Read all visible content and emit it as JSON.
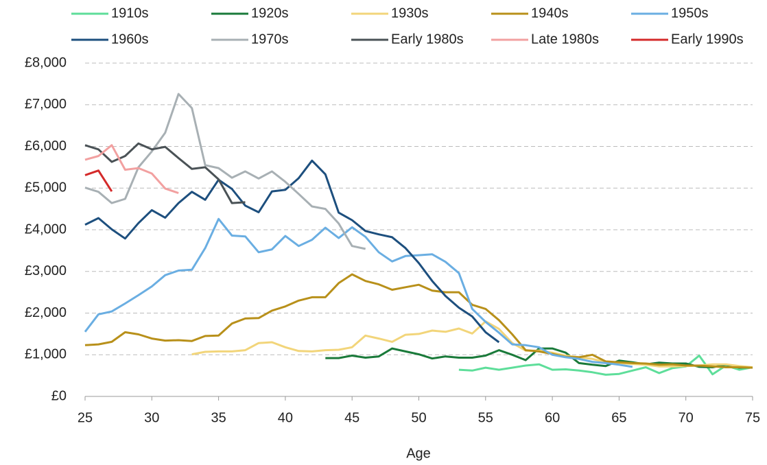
{
  "chart_data": {
    "type": "line",
    "x_label": "Age",
    "x": [
      25,
      26,
      27,
      28,
      29,
      30,
      31,
      32,
      33,
      34,
      35,
      36,
      37,
      38,
      39,
      40,
      41,
      42,
      43,
      44,
      45,
      46,
      47,
      48,
      49,
      50,
      51,
      52,
      53,
      54,
      55,
      56,
      57,
      58,
      59,
      60,
      61,
      62,
      63,
      64,
      65,
      66,
      67,
      68,
      69,
      70,
      71,
      72,
      73,
      74,
      75
    ],
    "xlim": [
      25,
      75
    ],
    "xticks": [
      25,
      30,
      35,
      40,
      45,
      50,
      55,
      60,
      65,
      70,
      75
    ],
    "ylim": [
      0,
      8000
    ],
    "yticks": [
      {
        "value": 0,
        "label": "£0"
      },
      {
        "value": 1000,
        "label": "£1,000"
      },
      {
        "value": 2000,
        "label": "£2,000"
      },
      {
        "value": 3000,
        "label": "£3,000"
      },
      {
        "value": 4000,
        "label": "£4,000"
      },
      {
        "value": 5000,
        "label": "£5,000"
      },
      {
        "value": 6000,
        "label": "£6,000"
      },
      {
        "value": 7000,
        "label": "£7,000"
      },
      {
        "value": 8000,
        "label": "£8,000"
      }
    ],
    "grid": true,
    "series": [
      {
        "name": "1910s",
        "color": "#5ede9a",
        "values": [
          null,
          null,
          null,
          null,
          null,
          null,
          null,
          null,
          null,
          null,
          null,
          null,
          null,
          null,
          null,
          null,
          null,
          null,
          null,
          null,
          null,
          null,
          null,
          null,
          null,
          null,
          null,
          null,
          640,
          620,
          690,
          640,
          690,
          740,
          770,
          640,
          650,
          620,
          580,
          520,
          540,
          620,
          700,
          560,
          680,
          720,
          980,
          530,
          740,
          640,
          700
        ]
      },
      {
        "name": "1920s",
        "color": "#1a7a3a",
        "values": [
          null,
          null,
          null,
          null,
          null,
          null,
          null,
          null,
          null,
          null,
          null,
          null,
          null,
          null,
          null,
          null,
          null,
          null,
          920,
          920,
          980,
          930,
          960,
          1150,
          1080,
          1010,
          910,
          960,
          930,
          930,
          980,
          1110,
          1000,
          870,
          1150,
          1150,
          1050,
          800,
          760,
          730,
          860,
          820,
          770,
          810,
          790,
          790,
          710,
          700,
          760,
          690,
          700
        ]
      },
      {
        "name": "1930s",
        "color": "#f2d57a",
        "values": [
          null,
          null,
          null,
          null,
          null,
          null,
          null,
          null,
          1010,
          1070,
          1080,
          1080,
          1110,
          1280,
          1300,
          1180,
          1090,
          1080,
          1110,
          1120,
          1180,
          1460,
          1390,
          1310,
          1480,
          1500,
          1580,
          1550,
          1630,
          1510,
          1800,
          1620,
          1280,
          1100,
          1100,
          1050,
          980,
          940,
          900,
          820,
          800,
          780,
          760,
          720,
          720,
          730,
          740,
          770,
          770,
          730,
          700
        ]
      },
      {
        "name": "1940s",
        "color": "#b8901a",
        "values": [
          1230,
          1250,
          1310,
          1540,
          1490,
          1390,
          1340,
          1350,
          1330,
          1450,
          1460,
          1750,
          1870,
          1880,
          2060,
          2160,
          2300,
          2380,
          2380,
          2720,
          2930,
          2770,
          2690,
          2560,
          2620,
          2680,
          2540,
          2500,
          2500,
          2200,
          2100,
          1830,
          1490,
          1110,
          1080,
          1020,
          950,
          940,
          1000,
          840,
          820,
          800,
          790,
          760,
          770,
          740,
          740,
          720,
          700,
          700,
          690
        ]
      },
      {
        "name": "1950s",
        "color": "#6aaee2",
        "values": [
          1550,
          1970,
          2040,
          2230,
          2430,
          2640,
          2910,
          3020,
          3040,
          3560,
          4260,
          3860,
          3840,
          3460,
          3530,
          3850,
          3610,
          3760,
          4050,
          3800,
          4060,
          3830,
          3460,
          3240,
          3370,
          3390,
          3410,
          3230,
          2960,
          2100,
          1790,
          1530,
          1250,
          1230,
          1180,
          1000,
          940,
          900,
          830,
          800,
          760,
          710,
          null,
          null,
          null,
          null,
          null,
          null,
          null,
          null,
          null
        ]
      },
      {
        "name": "1960s",
        "color": "#1d4f7e",
        "values": [
          4120,
          4280,
          4010,
          3790,
          4160,
          4470,
          4290,
          4640,
          4910,
          4720,
          5200,
          4980,
          4580,
          4420,
          4920,
          4960,
          5240,
          5660,
          5330,
          4410,
          4230,
          3970,
          3890,
          3820,
          3560,
          3200,
          2770,
          2410,
          2130,
          1920,
          1540,
          1300,
          null,
          null,
          null,
          null,
          null,
          null,
          null,
          null,
          null,
          null,
          null,
          null,
          null,
          null,
          null,
          null,
          null,
          null,
          null
        ]
      },
      {
        "name": "1970s",
        "color": "#a8b0b4",
        "values": [
          5010,
          4910,
          4640,
          4740,
          5500,
          5880,
          6330,
          7260,
          6920,
          5550,
          5480,
          5250,
          5400,
          5230,
          5400,
          5150,
          4860,
          4560,
          4500,
          4150,
          3610,
          3540,
          null,
          null,
          null,
          null,
          null,
          null,
          null,
          null,
          null,
          null,
          null,
          null,
          null,
          null,
          null,
          null,
          null,
          null,
          null,
          null,
          null,
          null,
          null,
          null,
          null,
          null,
          null,
          null,
          null
        ]
      },
      {
        "name": "Early 1980s",
        "color": "#4a5256",
        "values": [
          6030,
          5930,
          5630,
          5770,
          6070,
          5930,
          5990,
          5720,
          5460,
          5500,
          5210,
          4640,
          4660,
          null,
          null,
          null,
          null,
          null,
          null,
          null,
          null,
          null,
          null,
          null,
          null,
          null,
          null,
          null,
          null,
          null,
          null,
          null,
          null,
          null,
          null,
          null,
          null,
          null,
          null,
          null,
          null,
          null,
          null,
          null,
          null,
          null,
          null,
          null,
          null,
          null,
          null
        ]
      },
      {
        "name": "Late 1980s",
        "color": "#f2a0a0",
        "values": [
          5680,
          5770,
          6030,
          5440,
          5480,
          5350,
          4990,
          4880,
          null,
          null,
          null,
          null,
          null,
          null,
          null,
          null,
          null,
          null,
          null,
          null,
          null,
          null,
          null,
          null,
          null,
          null,
          null,
          null,
          null,
          null,
          null,
          null,
          null,
          null,
          null,
          null,
          null,
          null,
          null,
          null,
          null,
          null,
          null,
          null,
          null,
          null,
          null,
          null,
          null,
          null,
          null
        ]
      },
      {
        "name": "Early 1990s",
        "color": "#d42a2a",
        "values": [
          5310,
          5420,
          4920,
          null,
          null,
          null,
          null,
          null,
          null,
          null,
          null,
          null,
          null,
          null,
          null,
          null,
          null,
          null,
          null,
          null,
          null,
          null,
          null,
          null,
          null,
          null,
          null,
          null,
          null,
          null,
          null,
          null,
          null,
          null,
          null,
          null,
          null,
          null,
          null,
          null,
          null,
          null,
          null,
          null,
          null,
          null,
          null,
          null,
          null,
          null,
          null
        ]
      }
    ]
  }
}
